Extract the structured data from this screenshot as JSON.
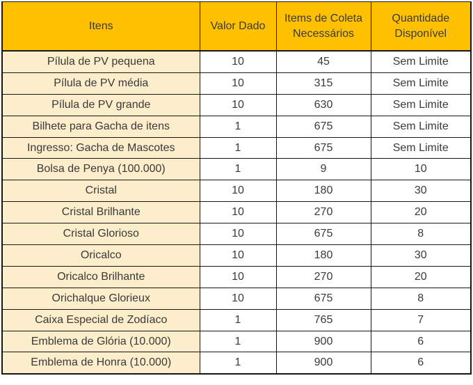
{
  "colors": {
    "header_bg": "#FFC000",
    "item_column_bg": "#FCEDCB",
    "cell_bg": "#FFFFFF",
    "border": "#161616",
    "text": "#3A3A3A"
  },
  "table": {
    "columns": [
      {
        "key": "item",
        "label": "Itens"
      },
      {
        "key": "value",
        "label": "Valor Dado"
      },
      {
        "key": "needed",
        "label": "Items de Coleta Necessários"
      },
      {
        "key": "available",
        "label": "Quantidade Disponível"
      }
    ],
    "rows": [
      [
        "Pílula de PV pequena",
        "10",
        "45",
        "Sem Limite"
      ],
      [
        "Pílula de PV média",
        "10",
        "315",
        "Sem Limite"
      ],
      [
        "Pílula de PV grande",
        "10",
        "630",
        "Sem Limite"
      ],
      [
        "Bilhete para Gacha de itens",
        "1",
        "675",
        "Sem Limite"
      ],
      [
        "Ingresso: Gacha de Mascotes",
        "1",
        "675",
        "Sem Limite"
      ],
      [
        "Bolsa de Penya (100.000)",
        "1",
        "9",
        "10"
      ],
      [
        "Cristal",
        "10",
        "180",
        "30"
      ],
      [
        "Cristal Brilhante",
        "10",
        "270",
        "20"
      ],
      [
        "Cristal Glorioso",
        "10",
        "675",
        "8"
      ],
      [
        "Oricalco",
        "10",
        "180",
        "30"
      ],
      [
        "Oricalco Brilhante",
        "10",
        "270",
        "20"
      ],
      [
        "Orichalque Glorieux",
        "10",
        "675",
        "8"
      ],
      [
        "Caixa Especial de Zodíaco",
        "1",
        "765",
        "7"
      ],
      [
        "Emblema de Glória (10.000)",
        "1",
        "900",
        "6"
      ],
      [
        "Emblema de Honra (10.000)",
        "1",
        "900",
        "6"
      ]
    ]
  }
}
